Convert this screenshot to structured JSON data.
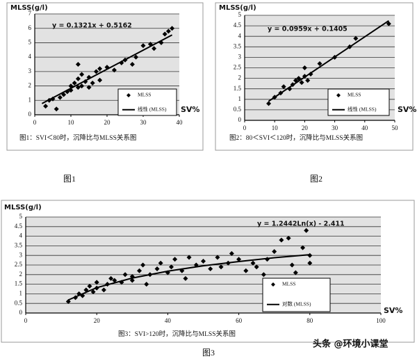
{
  "chart_data": [
    {
      "type": "scatter",
      "ylabel": "MLSS(g/l)",
      "annotation": "y = 0.1321x + 0.5162",
      "xlabel": "SV%",
      "caption": "图1：SVI＜80时，沉降比与MLSS关系图",
      "figure_label": "图1",
      "legend": "lower right",
      "grid": true,
      "xlim": [
        0,
        40
      ],
      "xticks": [
        0,
        10,
        20,
        30,
        40
      ],
      "ylim": [
        0,
        7
      ],
      "yticks": [
        0,
        1,
        2,
        3,
        4,
        5,
        6,
        7
      ],
      "series": [
        {
          "name": "MLSS",
          "mode": "markers",
          "color": "#000000",
          "x": [
            3,
            4,
            5,
            7,
            8,
            9,
            10,
            10,
            11,
            12,
            12,
            13,
            13,
            14,
            15,
            15,
            16,
            17,
            18,
            18,
            20,
            22,
            24,
            25,
            27,
            28,
            30,
            32,
            33,
            35,
            36,
            37,
            38,
            12,
            6
          ],
          "values": [
            0.6,
            1.0,
            1.1,
            1.2,
            1.4,
            1.6,
            1.7,
            2.0,
            2.2,
            1.9,
            2.5,
            2.0,
            2.8,
            2.3,
            2.6,
            1.9,
            2.2,
            3.0,
            2.4,
            3.2,
            3.3,
            3.1,
            3.6,
            3.8,
            3.5,
            4.0,
            4.8,
            4.9,
            4.6,
            5.0,
            5.6,
            5.8,
            6.0,
            3.5,
            0.4
          ]
        },
        {
          "name": "线性 (MLSS)",
          "mode": "lines",
          "color": "#000000",
          "x": [
            2,
            38
          ],
          "values": [
            0.78,
            5.54
          ]
        }
      ]
    },
    {
      "type": "scatter",
      "ylabel": "MLSS(g/l)",
      "annotation": "y = 0.0959x + 0.1405",
      "xlabel": "SV%",
      "caption": "图2：80＜SVI＜120时，沉降比与MLSS关系图",
      "figure_label": "图2",
      "legend": "lower right",
      "grid": true,
      "xlim": [
        0,
        50
      ],
      "xticks": [
        0,
        10,
        20,
        30,
        40,
        50
      ],
      "ylim": [
        0,
        5
      ],
      "yticks": [
        0,
        0.5,
        1,
        1.5,
        2,
        2.5,
        3,
        3.5,
        4,
        4.5,
        5
      ],
      "series": [
        {
          "name": "MLSS",
          "mode": "markers",
          "color": "#000000",
          "x": [
            8,
            10,
            12,
            13,
            15,
            16,
            17,
            18,
            19,
            20,
            20,
            21,
            22,
            25,
            30,
            35,
            37,
            48
          ],
          "values": [
            0.8,
            1.1,
            1.3,
            1.6,
            1.5,
            1.7,
            1.9,
            2.0,
            1.8,
            2.1,
            2.5,
            1.9,
            2.2,
            2.7,
            3.0,
            3.5,
            3.9,
            4.6
          ]
        },
        {
          "name": "线性 (MLSS)",
          "mode": "lines",
          "color": "#000000",
          "x": [
            8,
            48
          ],
          "values": [
            0.91,
            4.74
          ]
        }
      ]
    },
    {
      "type": "scatter",
      "ylabel": "MLSS(g/l)",
      "annotation": "y = 1.2442Ln(x) - 2.411",
      "xlabel": "SV%",
      "caption": "图3：SVI>120时，沉降比与MLSS关系图",
      "figure_label": "图3",
      "legend": "lower right",
      "grid": true,
      "xlim": [
        0,
        100
      ],
      "xticks": [
        0,
        20,
        40,
        60,
        80,
        100
      ],
      "ylim": [
        0,
        5
      ],
      "yticks": [
        0,
        0.5,
        1,
        1.5,
        2,
        2.5,
        3,
        3.5,
        4,
        4.5,
        5
      ],
      "series": [
        {
          "name": "MLSS",
          "mode": "markers",
          "color": "#000000",
          "x": [
            12,
            14,
            15,
            16,
            17,
            18,
            19,
            20,
            20,
            22,
            23,
            24,
            25,
            27,
            28,
            30,
            30,
            32,
            33,
            34,
            35,
            37,
            38,
            40,
            41,
            42,
            44,
            45,
            46,
            48,
            50,
            52,
            54,
            55,
            57,
            58,
            60,
            62,
            64,
            65,
            67,
            68,
            70,
            72,
            74,
            75,
            76,
            78,
            79,
            80,
            80
          ],
          "values": [
            0.6,
            0.8,
            1.0,
            0.9,
            1.2,
            1.4,
            1.1,
            1.3,
            1.6,
            1.2,
            1.5,
            1.8,
            1.7,
            1.6,
            2.0,
            1.9,
            1.7,
            2.2,
            2.5,
            1.5,
            2.0,
            2.3,
            2.6,
            2.1,
            2.4,
            2.8,
            2.2,
            1.8,
            2.9,
            2.5,
            2.7,
            2.3,
            2.9,
            2.4,
            2.6,
            3.1,
            2.8,
            2.2,
            2.6,
            2.4,
            2.0,
            2.8,
            3.2,
            3.8,
            3.9,
            2.5,
            2.1,
            3.4,
            4.3,
            3.0,
            2.6
          ]
        },
        {
          "name": "对数 (MLSS)",
          "mode": "lines",
          "color": "#000000",
          "x": [
            12,
            20,
            30,
            40,
            50,
            60,
            70,
            80
          ],
          "values": [
            0.68,
            1.32,
            1.82,
            2.18,
            2.46,
            2.68,
            2.88,
            3.04
          ]
        }
      ]
    }
  ],
  "watermark": "头条 @环境小课堂"
}
